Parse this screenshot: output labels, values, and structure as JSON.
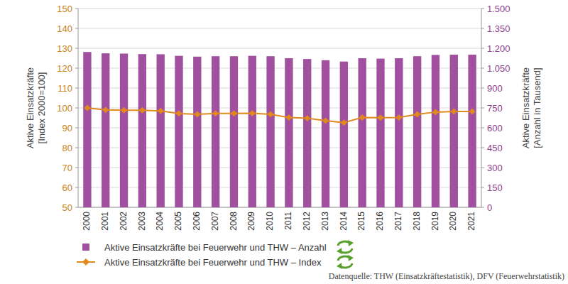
{
  "chart_data": {
    "type": "bar",
    "y_label": [
      "Aktive Einsatzkräfte",
      "[Index 2000=100]"
    ],
    "y2_label": [
      "Aktive Einsatzkräfte",
      "[Anzahl in Tausend]"
    ],
    "source": "Datenquelle: THW (Einsatzkräftestatistik), DFV (Feuerwehrstatistik)",
    "categories": [
      "2000",
      "2001",
      "2002",
      "2003",
      "2004",
      "2005",
      "2006",
      "2007",
      "2008",
      "2009",
      "2010",
      "2011",
      "2012",
      "2013",
      "2014",
      "2015",
      "2016",
      "2017",
      "2018",
      "2019",
      "2020",
      "2021"
    ],
    "series": [
      {
        "name": "Aktive Einsatzkräfte bei Feuerwehr und THW – Anzahl",
        "type": "bar",
        "axis": "y2",
        "color": "#a0509f",
        "marker": "square",
        "values": [
          1172,
          1162,
          1160,
          1156,
          1155,
          1143,
          1137,
          1140,
          1140,
          1143,
          1140,
          1125,
          1119,
          1110,
          1100,
          1125,
          1122,
          1125,
          1140,
          1150,
          1152,
          1152
        ]
      },
      {
        "name": "Aktive Einsatzkräfte bei Feuerwehr und THW – Index",
        "type": "line",
        "axis": "y",
        "color": "#e08a1e",
        "marker": "diamond",
        "line_style": "solid",
        "values": [
          100,
          99,
          98.8,
          98.8,
          98.5,
          97.2,
          96.8,
          97.2,
          97.2,
          97.3,
          96.8,
          95.2,
          94.8,
          93.6,
          92.6,
          95.2,
          95.1,
          95.2,
          96.8,
          97.9,
          98.2,
          98.2
        ]
      }
    ],
    "ylim": [
      50,
      150
    ],
    "yticks": [
      50,
      60,
      70,
      80,
      90,
      100,
      110,
      120,
      130,
      140,
      150
    ],
    "y2lim": [
      0,
      1500
    ],
    "y2ticks": [
      0,
      150,
      300,
      450,
      600,
      750,
      900,
      {
        "value": 1050,
        "label": "1.050"
      },
      {
        "value": 1200,
        "label": "1.200"
      },
      {
        "value": 1350,
        "label": "1.350"
      },
      {
        "value": 1500,
        "label": "1.500"
      }
    ],
    "grid": true,
    "legend": "bottom"
  }
}
